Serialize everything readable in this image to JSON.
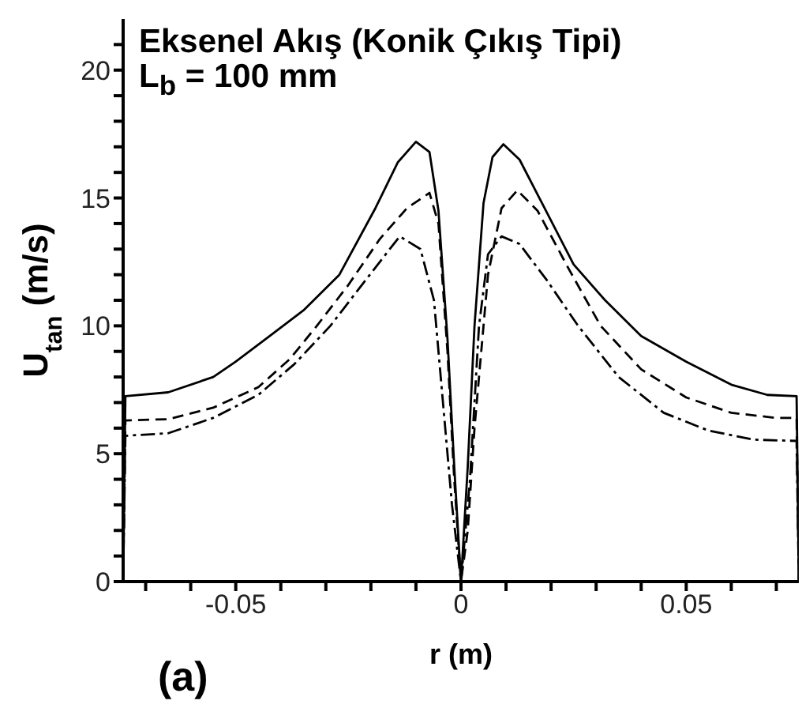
{
  "chart_data": {
    "type": "line",
    "title": "Eksenel Akış (Konik Çıkış Tipi)",
    "subtitle": "L$_{b}$ = 100 mm",
    "xlabel": "r (m)",
    "ylabel": "U$_{tan}$ (m/s)",
    "annotations": [
      "(a)"
    ],
    "xlim": [
      -0.075,
      0.075
    ],
    "ylim": [
      0,
      22
    ],
    "xticks": [
      {
        "value": -0.07,
        "label": null
      },
      {
        "value": -0.06,
        "label": null
      },
      -0.05,
      {
        "value": -0.04,
        "label": null
      },
      {
        "value": -0.03,
        "label": null
      },
      {
        "value": -0.02,
        "label": null
      },
      {
        "value": -0.01,
        "label": null
      },
      0,
      {
        "value": 0.01,
        "label": null
      },
      {
        "value": 0.02,
        "label": null
      },
      {
        "value": 0.03,
        "label": null
      },
      {
        "value": 0.04,
        "label": null
      },
      0.05,
      {
        "value": 0.06,
        "label": null
      },
      {
        "value": 0.07,
        "label": null
      }
    ],
    "yticks": [
      0,
      {
        "value": 1,
        "label": null
      },
      {
        "value": 2,
        "label": null
      },
      {
        "value": 3,
        "label": null
      },
      {
        "value": 4,
        "label": null
      },
      5,
      {
        "value": 6,
        "label": null
      },
      {
        "value": 7,
        "label": null
      },
      {
        "value": 8,
        "label": null
      },
      {
        "value": 9,
        "label": null
      },
      10,
      {
        "value": 11,
        "label": null
      },
      {
        "value": 12,
        "label": null
      },
      {
        "value": 13,
        "label": null
      },
      {
        "value": 14,
        "label": null
      },
      15,
      {
        "value": 16,
        "label": null
      },
      {
        "value": 17,
        "label": null
      },
      {
        "value": 18,
        "label": null
      },
      {
        "value": 19,
        "label": null
      },
      20,
      {
        "value": 21,
        "label": null
      }
    ],
    "marker": "none",
    "series": [
      {
        "color": "#000000",
        "line_style": "solid",
        "x": [
          -0.075,
          -0.0745,
          -0.065,
          -0.055,
          -0.05,
          -0.0425,
          -0.035,
          -0.027,
          -0.019,
          -0.014,
          -0.01,
          -0.007,
          -0.005,
          -0.003,
          -0.0015,
          0,
          0.0015,
          0.003,
          0.005,
          0.007,
          0.0094,
          0.013,
          0.0174,
          0.025,
          0.032,
          0.04,
          0.05,
          0.06,
          0.068,
          0.0745,
          0.075
        ],
        "values": [
          0,
          7.25,
          7.4,
          8,
          8.6,
          9.6,
          10.6,
          12,
          14.6,
          16.4,
          17.2,
          16.8,
          14.5,
          9.5,
          4.5,
          0,
          4.5,
          10,
          14.8,
          16.6,
          17.1,
          16.5,
          15,
          12.4,
          11,
          9.6,
          8.6,
          7.7,
          7.3,
          7.25,
          0
        ]
      },
      {
        "color": "#000000",
        "line_style": "dashed",
        "x": [
          -0.075,
          -0.0745,
          -0.065,
          -0.055,
          -0.045,
          -0.038,
          -0.032,
          -0.025,
          -0.018,
          -0.012,
          -0.007,
          -0.005,
          -0.003,
          -0.0015,
          0,
          0.0015,
          0.003,
          0.006,
          0.009,
          0.0125,
          0.017,
          0.024,
          0.031,
          0.04,
          0.05,
          0.06,
          0.07,
          0.0745,
          0.075
        ],
        "values": [
          0,
          6.3,
          6.35,
          6.8,
          7.6,
          8.7,
          10,
          11.6,
          13.4,
          14.6,
          15.2,
          14,
          9,
          4,
          0,
          2,
          6,
          12,
          14.6,
          15.3,
          14.5,
          12.2,
          10,
          8.3,
          7.2,
          6.6,
          6.4,
          6.4,
          0
        ]
      },
      {
        "color": "#000000",
        "line_style": "dotted",
        "x": [
          -0.075,
          -0.0745,
          -0.065,
          -0.055,
          -0.045,
          -0.037,
          -0.029,
          -0.022,
          -0.0136,
          -0.009,
          -0.006,
          -0.004,
          -0.002,
          0,
          0.002,
          0.004,
          0.006,
          0.009,
          0.013,
          0.019,
          0.026,
          0.035,
          0.045,
          0.055,
          0.065,
          0.0745,
          0.075
        ],
        "values": [
          0,
          5.7,
          5.8,
          6.4,
          7.3,
          8.5,
          10,
          11.6,
          13.5,
          13,
          11,
          7,
          3,
          0,
          4,
          10,
          12.8,
          13.5,
          13.2,
          11.8,
          10,
          8,
          6.6,
          5.9,
          5.55,
          5.5,
          0
        ]
      }
    ]
  }
}
